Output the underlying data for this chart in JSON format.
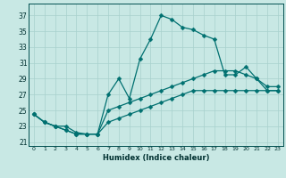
{
  "xlabel": "Humidex (Indice chaleur)",
  "background_color": "#c8e8e4",
  "grid_color": "#a8d0cc",
  "line_color": "#007070",
  "xlim": [
    -0.5,
    23.5
  ],
  "ylim": [
    20.5,
    38.5
  ],
  "xticks": [
    0,
    1,
    2,
    3,
    4,
    5,
    6,
    7,
    8,
    9,
    10,
    11,
    12,
    13,
    14,
    15,
    16,
    17,
    18,
    19,
    20,
    21,
    22,
    23
  ],
  "yticks": [
    21,
    23,
    25,
    27,
    29,
    31,
    33,
    35,
    37
  ],
  "line_peak_x": [
    0,
    1,
    2,
    3,
    4,
    5,
    6,
    7,
    8,
    9,
    10,
    11,
    12,
    13,
    14,
    15,
    16,
    17,
    18,
    19,
    20,
    21,
    22,
    23
  ],
  "line_peak_y": [
    24.5,
    23.5,
    23.0,
    23.0,
    22.2,
    22.0,
    22.0,
    27.0,
    29.0,
    26.5,
    31.5,
    34.0,
    37.0,
    36.5,
    35.5,
    35.2,
    34.5,
    34.0,
    29.5,
    29.5,
    30.5,
    29.0,
    27.5,
    27.5
  ],
  "line_mid_x": [
    0,
    1,
    2,
    3,
    4,
    5,
    6,
    7,
    8,
    9,
    10,
    11,
    12,
    13,
    14,
    15,
    16,
    17,
    18,
    19,
    20,
    21,
    22,
    23
  ],
  "line_mid_y": [
    24.5,
    23.5,
    23.0,
    22.5,
    22.0,
    22.0,
    22.0,
    25.0,
    25.5,
    26.0,
    26.5,
    27.0,
    27.5,
    28.0,
    28.5,
    29.0,
    29.5,
    30.0,
    30.0,
    30.0,
    29.5,
    29.0,
    28.0,
    28.0
  ],
  "line_low_x": [
    0,
    1,
    2,
    3,
    4,
    5,
    6,
    7,
    8,
    9,
    10,
    11,
    12,
    13,
    14,
    15,
    16,
    17,
    18,
    19,
    20,
    21,
    22,
    23
  ],
  "line_low_y": [
    24.5,
    23.5,
    23.0,
    22.5,
    22.0,
    22.0,
    22.0,
    23.5,
    24.0,
    24.5,
    25.0,
    25.5,
    26.0,
    26.5,
    27.0,
    27.5,
    27.5,
    27.5,
    27.5,
    27.5,
    27.5,
    27.5,
    27.5,
    27.5
  ]
}
